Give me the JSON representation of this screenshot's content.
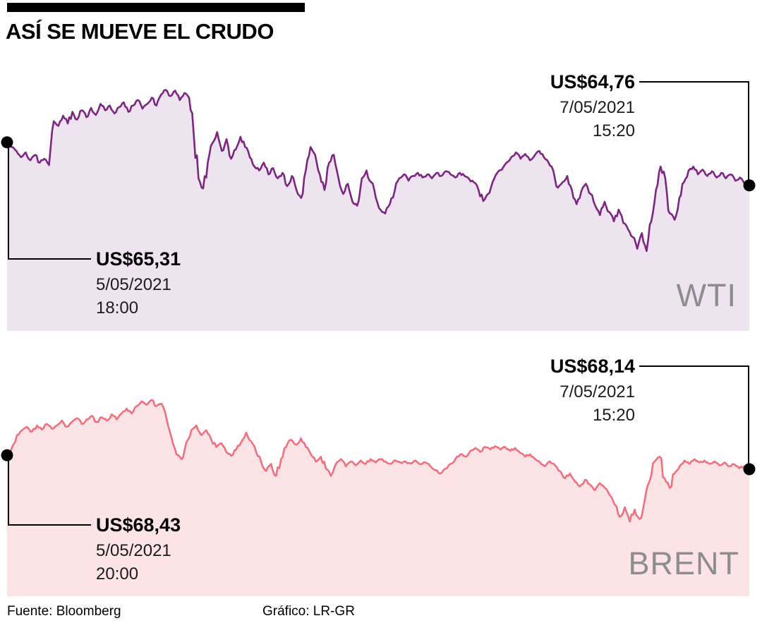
{
  "header": {
    "title": "ASÍ SE MUEVE EL CRUDO"
  },
  "footer": {
    "source": "Fuente: Bloomberg",
    "credit": "Gráfico: LR-GR"
  },
  "colors": {
    "marker": "#000000",
    "ticker_label": "#8d8d8d"
  },
  "chart_data": [
    {
      "type": "area",
      "name": "WTI",
      "line_color": "#7d2583",
      "fill_color": "#ede4f0",
      "ylim": [
        62.9,
        66.2
      ],
      "start_annotation": {
        "price": "US$65,31",
        "date": "5/05/2021",
        "time": "18:00"
      },
      "end_annotation": {
        "price": "US$64,76",
        "date": "7/05/2021",
        "time": "15:20"
      },
      "values": [
        65.31,
        65.25,
        65.2,
        65.12,
        65.18,
        65.08,
        65.15,
        65.05,
        65.1,
        65.02,
        65.58,
        65.52,
        65.65,
        65.55,
        65.7,
        65.6,
        65.72,
        65.63,
        65.75,
        65.66,
        65.8,
        65.72,
        65.78,
        65.68,
        65.76,
        65.82,
        65.7,
        65.78,
        65.85,
        65.74,
        65.8,
        65.88,
        65.78,
        65.92,
        65.98,
        65.9,
        65.97,
        65.85,
        65.94,
        65.88,
        65.4,
        64.85,
        64.72,
        65.05,
        65.3,
        65.44,
        65.2,
        65.35,
        65.1,
        65.22,
        65.38,
        65.25,
        65.12,
        65.0,
        64.95,
        65.05,
        64.9,
        64.98,
        64.85,
        64.92,
        64.75,
        64.88,
        64.7,
        64.6,
        64.95,
        65.25,
        65.15,
        64.9,
        64.7,
        65.05,
        65.15,
        64.85,
        64.65,
        64.78,
        64.55,
        64.5,
        64.85,
        64.95,
        64.8,
        64.6,
        64.45,
        64.4,
        64.52,
        64.68,
        64.85,
        64.9,
        64.82,
        64.88,
        64.92,
        64.86,
        64.9,
        64.85,
        64.92,
        64.88,
        64.94,
        64.9,
        64.86,
        64.92,
        64.88,
        64.84,
        64.8,
        64.7,
        64.56,
        64.65,
        64.8,
        64.92,
        64.96,
        65.05,
        65.12,
        65.18,
        65.1,
        65.16,
        65.08,
        65.14,
        65.2,
        65.12,
        65.05,
        64.95,
        64.73,
        64.8,
        64.88,
        64.7,
        64.52,
        64.68,
        64.78,
        64.65,
        64.5,
        64.38,
        64.55,
        64.42,
        64.3,
        64.45,
        64.28,
        64.2,
        64.1,
        63.95,
        64.15,
        63.92,
        64.3,
        64.7,
        65.0,
        64.85,
        64.4,
        64.32,
        64.6,
        64.8,
        64.95,
        65.0,
        64.9,
        64.96,
        64.88,
        64.94,
        64.86,
        64.92,
        64.85,
        64.9,
        64.82,
        64.86,
        64.78,
        64.76
      ]
    },
    {
      "type": "area",
      "name": "BRENT",
      "line_color": "#f1707e",
      "fill_color": "#fce4e6",
      "ylim": [
        65.5,
        69.9
      ],
      "start_annotation": {
        "price": "US$68,43",
        "date": "5/05/2021",
        "time": "20:00"
      },
      "end_annotation": {
        "price": "US$68,14",
        "date": "7/05/2021",
        "time": "15:20"
      },
      "values": [
        68.43,
        68.6,
        68.85,
        68.95,
        69.02,
        68.92,
        69.05,
        68.96,
        69.08,
        68.98,
        69.05,
        69.15,
        69.02,
        69.12,
        69.2,
        69.08,
        69.18,
        69.25,
        69.12,
        69.22,
        69.15,
        69.28,
        69.18,
        69.3,
        69.4,
        69.3,
        69.45,
        69.55,
        69.48,
        69.58,
        69.45,
        69.5,
        69.2,
        68.8,
        68.45,
        68.35,
        68.7,
        68.95,
        69.05,
        68.85,
        68.95,
        68.75,
        68.6,
        68.68,
        68.5,
        68.42,
        68.55,
        68.7,
        68.9,
        68.72,
        68.5,
        68.3,
        68.1,
        68.25,
        68.0,
        68.35,
        68.6,
        68.75,
        68.65,
        68.78,
        68.6,
        68.45,
        68.3,
        68.4,
        68.15,
        68.0,
        68.25,
        68.35,
        68.2,
        68.3,
        68.22,
        68.32,
        68.25,
        68.35,
        68.28,
        68.35,
        68.3,
        68.25,
        68.32,
        68.28,
        68.3,
        68.26,
        68.32,
        68.24,
        68.28,
        68.2,
        68.12,
        68.05,
        68.15,
        68.25,
        68.35,
        68.45,
        68.4,
        68.52,
        68.58,
        68.5,
        68.6,
        68.55,
        68.62,
        68.55,
        68.6,
        68.52,
        68.58,
        68.48,
        68.4,
        68.45,
        68.35,
        68.28,
        68.2,
        68.3,
        68.22,
        68.1,
        67.95,
        68.05,
        67.88,
        67.78,
        67.92,
        67.82,
        67.7,
        67.85,
        67.75,
        67.6,
        67.4,
        67.15,
        67.35,
        67.05,
        67.3,
        67.1,
        67.5,
        67.9,
        68.3,
        68.4,
        67.95,
        67.75,
        68.05,
        68.2,
        68.32,
        68.25,
        68.35,
        68.28,
        68.32,
        68.25,
        68.3,
        68.22,
        68.28,
        68.2,
        68.24,
        68.16,
        68.2,
        68.14
      ]
    }
  ]
}
